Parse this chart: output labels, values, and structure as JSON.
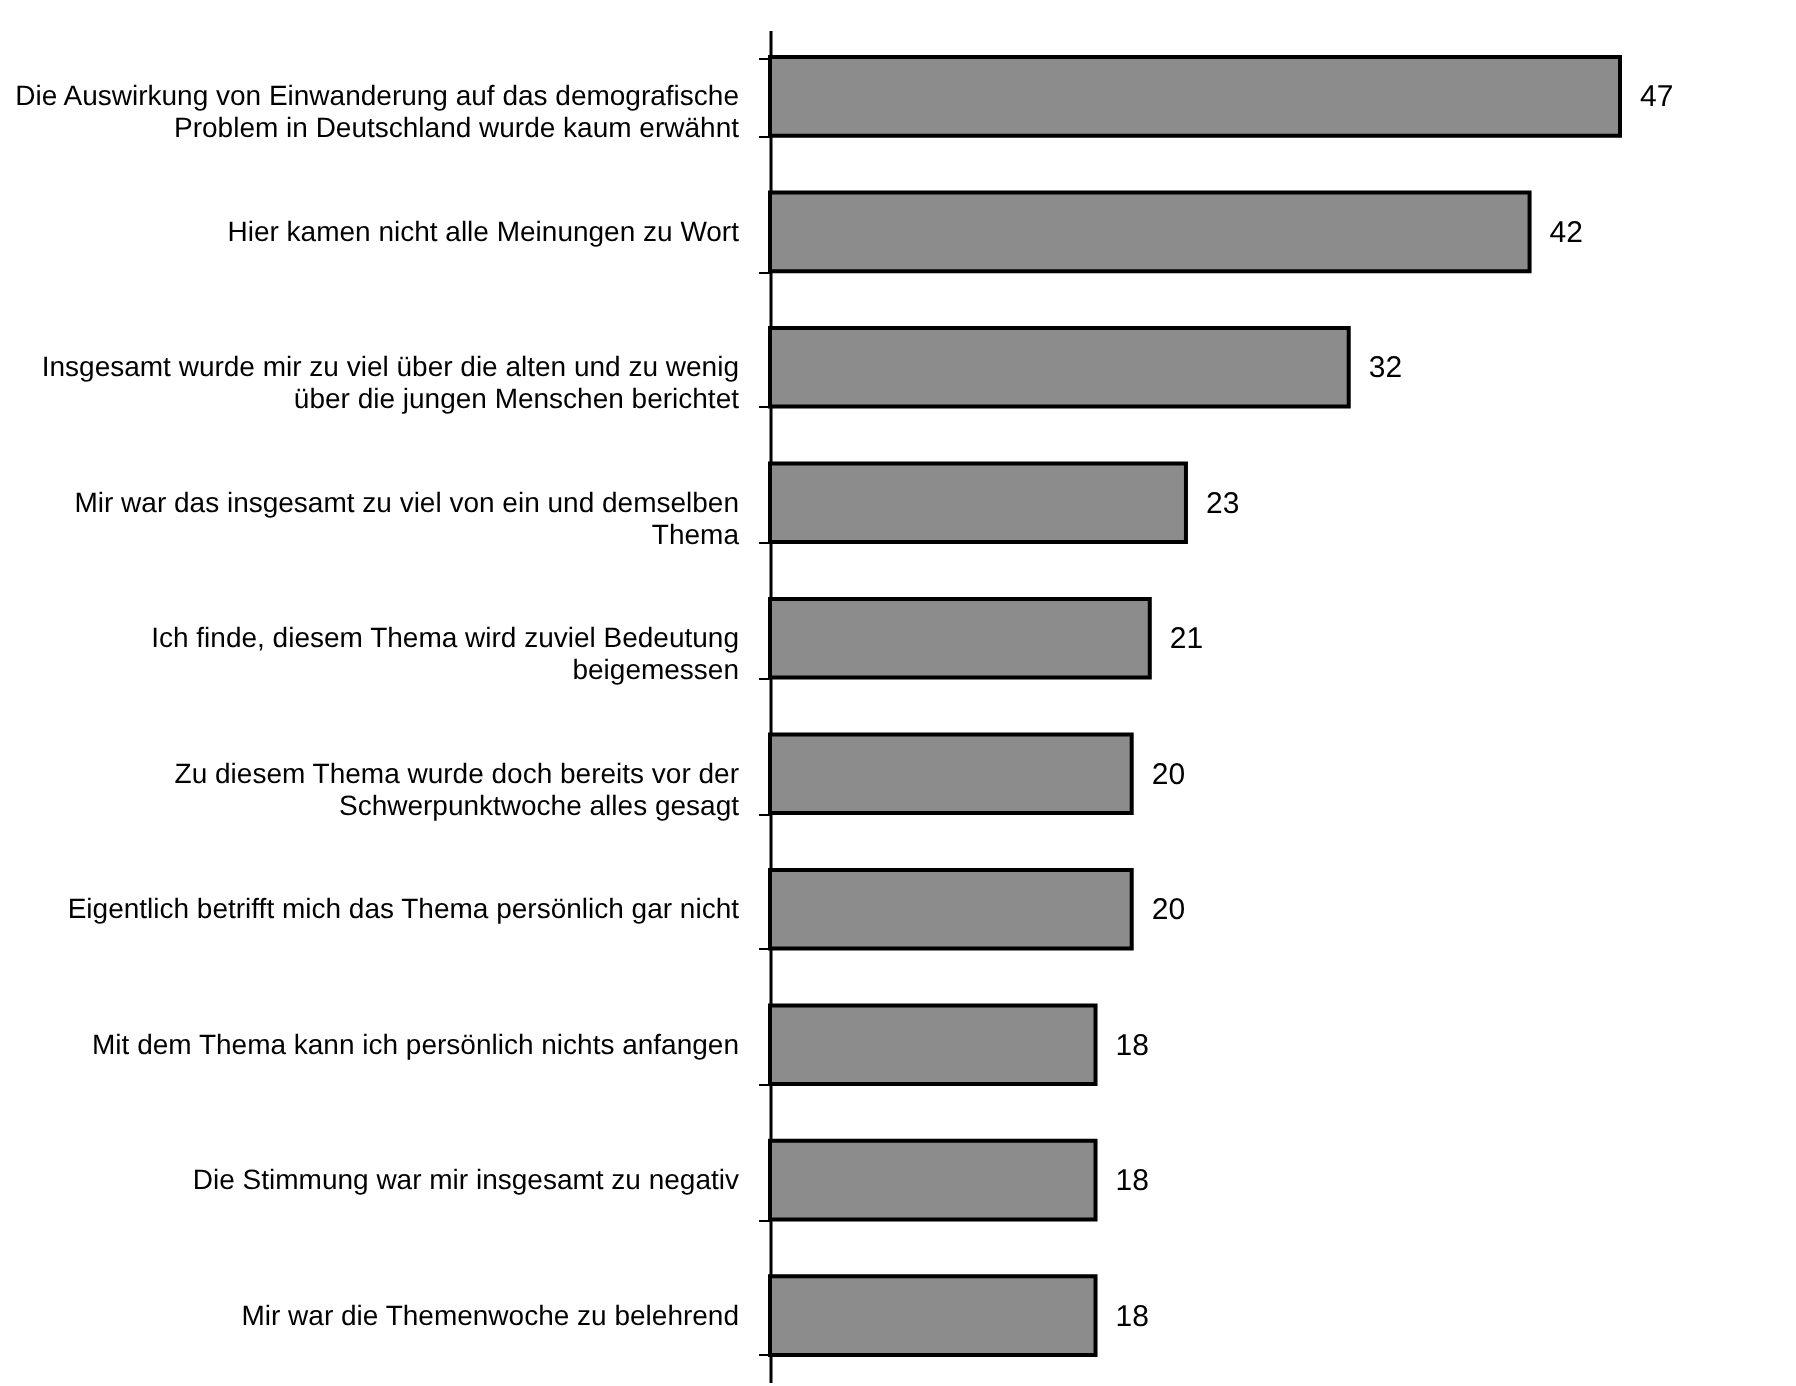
{
  "chart_data": {
    "type": "bar",
    "orientation": "horizontal",
    "data_labels": true,
    "legend": false,
    "categories": [
      "Die Auswirkung von Einwanderung auf das demografische Problem in Deutschland wurde kaum erwähnt",
      "Hier kamen nicht alle Meinungen zu Wort",
      "Insgesamt wurde mir zu viel über die alten und zu wenig über die jungen Menschen berichtet",
      "Mir war das insgesamt zu viel von ein und demselben Thema",
      "Ich finde, diesem Thema wird zuviel Bedeutung beigemessen",
      "Zu diesem Thema wurde doch bereits vor der Schwerpunktwoche alles gesagt",
      "Eigentlich betrifft mich das Thema persönlich gar nicht",
      "Mit dem Thema kann ich persönlich nichts anfangen",
      "Die Stimmung war mir insgesamt zu negativ",
      "Mir war die Themenwoche zu belehrend"
    ],
    "series": [
      {
        "color": "#8c8c8c",
        "values": [
          47,
          42,
          32,
          23,
          21,
          20,
          20,
          18,
          18,
          18
        ]
      }
    ]
  }
}
